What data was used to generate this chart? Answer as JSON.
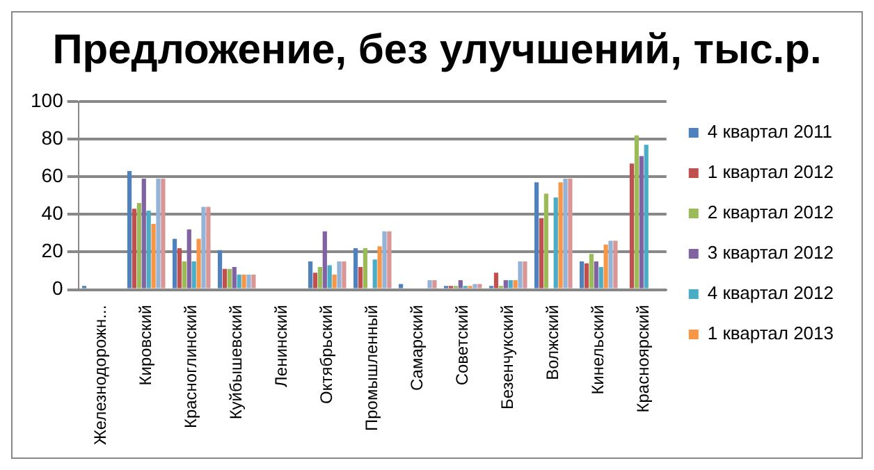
{
  "chart_data": {
    "type": "bar",
    "title": "Предложение, без улучшений, тыс.р.",
    "categories": [
      "Железнодорожн...",
      "Кировский",
      "Красноглинский",
      "Куйбышевский",
      "Ленинский",
      "Октябрьский",
      "Промышленный",
      "Самарский",
      "Советский",
      "Безенчукский",
      "Волжский",
      "Кинельский",
      "Красноярский"
    ],
    "series": [
      {
        "name": "4 квартал 2011",
        "color": "#4f81bd",
        "values": [
          2,
          63,
          27,
          21,
          0,
          15,
          22,
          3,
          2,
          2,
          57,
          15,
          0
        ]
      },
      {
        "name": "1 квартал 2012",
        "color": "#c0504d",
        "values": [
          0,
          43,
          22,
          11,
          0,
          9,
          12,
          0,
          2,
          9,
          38,
          14,
          67
        ]
      },
      {
        "name": "2 квартал 2012",
        "color": "#9bbb59",
        "values": [
          0,
          46,
          15,
          11,
          0,
          12,
          22,
          0,
          2,
          2,
          51,
          19,
          82
        ]
      },
      {
        "name": "3 квартал 2012",
        "color": "#8064a2",
        "values": [
          0,
          59,
          32,
          12,
          0,
          31,
          0,
          0,
          5,
          5,
          0,
          15,
          71
        ]
      },
      {
        "name": "4 квартал 2012",
        "color": "#4bacc6",
        "values": [
          0,
          42,
          15,
          8,
          0,
          13,
          16,
          0,
          2,
          5,
          49,
          12,
          77
        ]
      },
      {
        "name": "1 квартал 2013",
        "color": "#f79646",
        "values": [
          0,
          35,
          27,
          8,
          0,
          8,
          23,
          0,
          2,
          5,
          57,
          24,
          null
        ]
      },
      {
        "color": "#95b3d7",
        "values": [
          0,
          59,
          44,
          8,
          0,
          15,
          31,
          5,
          3,
          15,
          59,
          26,
          null
        ]
      },
      {
        "color": "#da9694",
        "values": [
          0,
          59,
          44,
          8,
          0,
          15,
          31,
          5,
          3,
          15,
          59,
          26,
          null
        ]
      }
    ],
    "ylim": [
      0,
      100
    ],
    "yticks": [
      0,
      20,
      40,
      60,
      80,
      100
    ],
    "grid": "y",
    "legend": "right"
  }
}
